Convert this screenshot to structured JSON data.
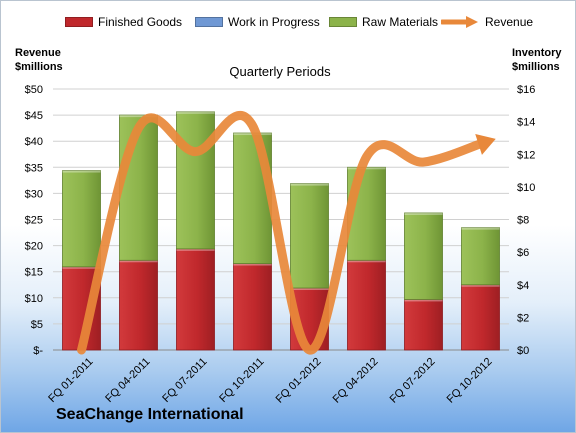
{
  "chart_data": {
    "type": "bar",
    "title": "Quarterly Periods",
    "categories": [
      "FQ 01-2011",
      "FQ 04-2011",
      "FQ 07-2011",
      "FQ 10-2011",
      "FQ 01-2012",
      "FQ 04-2012",
      "FQ 07-2012",
      "FQ 10-2012"
    ],
    "stacked": true,
    "series": [
      {
        "name": "Finished Goods",
        "axis": "right",
        "color": "#c0282c",
        "values": [
          5.1,
          5.5,
          6.2,
          5.3,
          3.8,
          5.5,
          3.1,
          4.0
        ]
      },
      {
        "name": "Work in Progress",
        "axis": "right",
        "color": "#6f98d4",
        "values": [
          0,
          0,
          0,
          0,
          0,
          0,
          0,
          0
        ]
      },
      {
        "name": "Raw Materials",
        "axis": "right",
        "color": "#8cb34a",
        "values": [
          5.9,
          8.9,
          8.4,
          8.0,
          6.4,
          5.7,
          5.3,
          3.5
        ]
      }
    ],
    "line_series": {
      "name": "Revenue",
      "axis": "left",
      "color": "#e8883a",
      "values": [
        0,
        42.5,
        38,
        43,
        0,
        37,
        36,
        39.5
      ]
    },
    "left_axis": {
      "label_line1": "Revenue",
      "label_line2": "$millions",
      "ylim": [
        0,
        50
      ],
      "ticks": [
        "$-",
        "$5",
        "$10",
        "$15",
        "$20",
        "$25",
        "$30",
        "$35",
        "$40",
        "$45",
        "$50"
      ]
    },
    "right_axis": {
      "label_line1": "Inventory",
      "label_line2": "$millions",
      "ylim": [
        0,
        16
      ],
      "ticks": [
        "$0",
        "$2",
        "$4",
        "$6",
        "$8",
        "$10",
        "$12",
        "$14",
        "$16"
      ]
    },
    "grid": true,
    "legend_position": "top"
  },
  "legend": [
    {
      "label": "Finished Goods",
      "color": "#c0282c",
      "kind": "box"
    },
    {
      "label": "Work in Progress",
      "color": "#6f98d4",
      "kind": "box"
    },
    {
      "label": "Raw Materials",
      "color": "#8cb34a",
      "kind": "box"
    },
    {
      "label": "Revenue",
      "color": "#e8883a",
      "kind": "arrow"
    }
  ],
  "company": "SeaChange International"
}
